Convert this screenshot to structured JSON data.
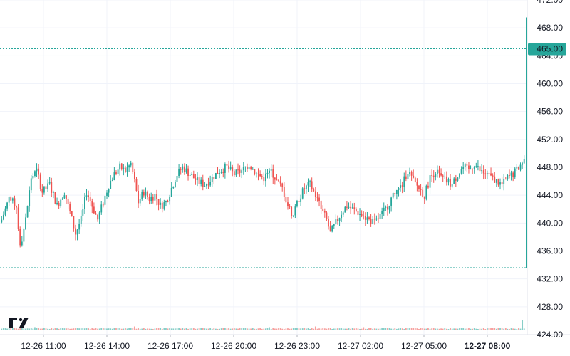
{
  "chart_data": {
    "type": "candlestick",
    "title": "",
    "xlabel": "",
    "ylabel": "",
    "ylim": [
      424,
      472
    ],
    "y_ticks": [
      "424.00",
      "428.00",
      "432.00",
      "436.00",
      "440.00",
      "444.00",
      "448.00",
      "452.00",
      "456.00",
      "460.00",
      "464.00",
      "468.00",
      "472.00"
    ],
    "x_ticks": [
      {
        "label": "12-26 11:00",
        "bold": false
      },
      {
        "label": "12-26 14:00",
        "bold": false
      },
      {
        "label": "12-26 17:00",
        "bold": false
      },
      {
        "label": "12-26 20:00",
        "bold": false
      },
      {
        "label": "12-26 23:00",
        "bold": false
      },
      {
        "label": "12-27 02:00",
        "bold": false
      },
      {
        "label": "12-27 05:00",
        "bold": false
      },
      {
        "label": "12-27 08:00",
        "bold": true
      }
    ],
    "price_label": {
      "value": "465.00",
      "price": 465.0,
      "color": "#26a69a"
    },
    "range_lines": [
      465.0,
      433.6
    ],
    "grid": true,
    "up_color": "#26a69a",
    "down_color": "#ef5350",
    "watermark": "TV",
    "close_path": [
      [
        0,
        440.5
      ],
      [
        4,
        443.5
      ],
      [
        8,
        442.5
      ],
      [
        10,
        436.5
      ],
      [
        13,
        440.5
      ],
      [
        16,
        446.5
      ],
      [
        19,
        447.5
      ],
      [
        22,
        444.5
      ],
      [
        26,
        445.5
      ],
      [
        30,
        442.5
      ],
      [
        34,
        444.5
      ],
      [
        37,
        441.5
      ],
      [
        40,
        438.5
      ],
      [
        43,
        440.5
      ],
      [
        46,
        444.5
      ],
      [
        49,
        442.5
      ],
      [
        52,
        440.5
      ],
      [
        55,
        443.0
      ],
      [
        58,
        445.5
      ],
      [
        61,
        447.0
      ],
      [
        64,
        448.0
      ],
      [
        67,
        447.5
      ],
      [
        70,
        448.5
      ],
      [
        72,
        446.0
      ],
      [
        74,
        443.0
      ],
      [
        77,
        444.5
      ],
      [
        80,
        443.5
      ],
      [
        83,
        444.0
      ],
      [
        86,
        442.5
      ],
      [
        89,
        443.0
      ],
      [
        92,
        445.0
      ],
      [
        95,
        447.0
      ],
      [
        98,
        448.0
      ],
      [
        102,
        447.0
      ],
      [
        106,
        446.0
      ],
      [
        110,
        445.5
      ],
      [
        114,
        446.5
      ],
      [
        118,
        447.5
      ],
      [
        122,
        448.0
      ],
      [
        126,
        447.0
      ],
      [
        130,
        447.5
      ],
      [
        134,
        448.5
      ],
      [
        138,
        447.0
      ],
      [
        142,
        446.5
      ],
      [
        146,
        447.5
      ],
      [
        149,
        446.0
      ],
      [
        152,
        445.0
      ],
      [
        155,
        442.5
      ],
      [
        158,
        441.0
      ],
      [
        161,
        443.5
      ],
      [
        164,
        445.0
      ],
      [
        167,
        445.5
      ],
      [
        170,
        444.0
      ],
      [
        173,
        442.0
      ],
      [
        176,
        440.5
      ],
      [
        178,
        438.5
      ],
      [
        181,
        440.0
      ],
      [
        184,
        441.5
      ],
      [
        187,
        442.5
      ],
      [
        190,
        442.0
      ],
      [
        193,
        441.5
      ],
      [
        196,
        441.0
      ],
      [
        199,
        440.5
      ],
      [
        202,
        440.0
      ],
      [
        205,
        441.0
      ],
      [
        208,
        442.0
      ],
      [
        211,
        443.5
      ],
      [
        214,
        444.5
      ],
      [
        217,
        445.5
      ],
      [
        220,
        447.5
      ],
      [
        223,
        446.0
      ],
      [
        226,
        445.0
      ],
      [
        229,
        444.0
      ],
      [
        232,
        446.5
      ],
      [
        235,
        447.5
      ],
      [
        238,
        446.5
      ],
      [
        241,
        446.0
      ],
      [
        244,
        445.5
      ],
      [
        247,
        447.0
      ],
      [
        250,
        448.0
      ],
      [
        253,
        447.5
      ],
      [
        256,
        448.5
      ],
      [
        259,
        447.5
      ],
      [
        262,
        447.0
      ],
      [
        265,
        446.5
      ],
      [
        268,
        446.0
      ],
      [
        271,
        445.5
      ],
      [
        274,
        446.5
      ],
      [
        277,
        447.0
      ],
      [
        280,
        448.0
      ],
      [
        283,
        449.0
      ]
    ],
    "volume_spikes": [
      [
        4,
        3.0
      ],
      [
        10,
        2.0
      ],
      [
        18,
        3.5
      ],
      [
        72,
        4.5
      ],
      [
        130,
        2.5
      ],
      [
        145,
        3.5
      ],
      [
        158,
        2.0
      ],
      [
        170,
        4.5
      ],
      [
        196,
        3.5
      ],
      [
        213,
        3.0
      ],
      [
        265,
        2.0
      ],
      [
        282,
        14.0
      ]
    ]
  }
}
